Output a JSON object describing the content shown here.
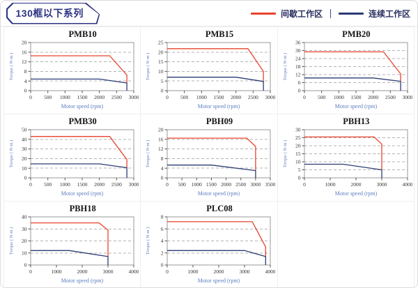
{
  "header": {
    "title": "130框以下系列",
    "legend": [
      {
        "label": "间歇工作区",
        "color": "#e8432c"
      },
      {
        "label": "连续工作区",
        "color": "#2a3b72"
      }
    ]
  },
  "colors": {
    "intermittent_zone": "#e8432c",
    "continuous_zone": "#2a3b72",
    "axis_label_blue": "#5b7cc0",
    "header_navy": "#2b3282"
  },
  "chart_data": [
    {
      "type": "line",
      "title": "PMB10",
      "xlabel": "Motor speed (rpm)",
      "ylabel": "Torque ( N·m )",
      "xlim": [
        0,
        3000
      ],
      "ylim": [
        0,
        20
      ],
      "xticks": [
        0,
        500,
        1000,
        1500,
        2000,
        2500,
        3000
      ],
      "yticks": [
        0,
        4,
        8,
        12,
        16,
        20
      ],
      "grid": "horizontal-dashed",
      "legend_position": "none",
      "series": [
        {
          "name": "间歇工作区",
          "color": "#e8432c",
          "points": [
            [
              0,
              14.5
            ],
            [
              2300,
              14.5
            ],
            [
              2800,
              6.5
            ],
            [
              2800,
              3.2
            ]
          ]
        },
        {
          "name": "连续工作区",
          "color": "#2a3b72",
          "points": [
            [
              0,
              4.8
            ],
            [
              2000,
              4.8
            ],
            [
              2800,
              3.2
            ],
            [
              2800,
              0
            ]
          ]
        }
      ]
    },
    {
      "type": "line",
      "title": "PMB15",
      "xlabel": "Motor speed (rpm)",
      "ylabel": "Torque ( N·m )",
      "xlim": [
        0,
        3000
      ],
      "ylim": [
        0,
        25
      ],
      "xticks": [
        0,
        500,
        1000,
        1500,
        2000,
        2500,
        3000
      ],
      "yticks": [
        0,
        5,
        10,
        15,
        20,
        25
      ],
      "grid": "horizontal-dashed",
      "legend_position": "none",
      "series": [
        {
          "name": "间歇工作区",
          "color": "#e8432c",
          "points": [
            [
              0,
              21.8
            ],
            [
              2350,
              21.8
            ],
            [
              2800,
              10
            ],
            [
              2800,
              4.8
            ]
          ]
        },
        {
          "name": "连续工作区",
          "color": "#2a3b72",
          "points": [
            [
              0,
              7
            ],
            [
              2000,
              7
            ],
            [
              2800,
              4.8
            ],
            [
              2800,
              0
            ]
          ]
        }
      ]
    },
    {
      "type": "line",
      "title": "PMB20",
      "xlabel": "Motor speed (rpm)",
      "ylabel": "Torque ( N·m )",
      "xlim": [
        0,
        3000
      ],
      "ylim": [
        0,
        36
      ],
      "xticks": [
        0,
        500,
        1000,
        1500,
        2000,
        2500,
        3000
      ],
      "yticks": [
        0,
        6,
        12,
        18,
        24,
        30,
        36
      ],
      "grid": "horizontal-dashed",
      "legend_position": "none",
      "series": [
        {
          "name": "间歇工作区",
          "color": "#e8432c",
          "points": [
            [
              0,
              29
            ],
            [
              2300,
              29
            ],
            [
              2800,
              12.5
            ],
            [
              2800,
              7
            ]
          ]
        },
        {
          "name": "连续工作区",
          "color": "#2a3b72",
          "points": [
            [
              0,
              9.5
            ],
            [
              2000,
              9.5
            ],
            [
              2800,
              7
            ],
            [
              2800,
              0
            ]
          ]
        }
      ]
    },
    {
      "type": "line",
      "title": "PMB30",
      "xlabel": "Motor speed (rpm)",
      "ylabel": "Torque ( N·m )",
      "xlim": [
        0,
        3000
      ],
      "ylim": [
        0,
        50
      ],
      "xticks": [
        0,
        500,
        1000,
        1500,
        2000,
        2500,
        3000
      ],
      "yticks": [
        0,
        10,
        20,
        30,
        40,
        50
      ],
      "grid": "horizontal-dashed",
      "legend_position": "none",
      "series": [
        {
          "name": "间歇工作区",
          "color": "#e8432c",
          "points": [
            [
              0,
              43
            ],
            [
              2300,
              43
            ],
            [
              2800,
              19
            ],
            [
              2800,
              10.5
            ]
          ]
        },
        {
          "name": "连续工作区",
          "color": "#2a3b72",
          "points": [
            [
              0,
              14.5
            ],
            [
              2000,
              14.5
            ],
            [
              2800,
              10.5
            ],
            [
              2800,
              0
            ]
          ]
        }
      ]
    },
    {
      "type": "line",
      "title": "PBH09",
      "xlabel": "Motor speed (rpm)",
      "ylabel": "Torque ( N·m )",
      "xlim": [
        0,
        3500
      ],
      "ylim": [
        0,
        20
      ],
      "xticks": [
        0,
        500,
        1000,
        1500,
        2000,
        2500,
        3000,
        3500
      ],
      "yticks": [
        0,
        4,
        8,
        12,
        16,
        20
      ],
      "grid": "horizontal-dashed",
      "legend_position": "none",
      "series": [
        {
          "name": "间歇工作区",
          "color": "#e8432c",
          "points": [
            [
              0,
              16.5
            ],
            [
              2700,
              16.5
            ],
            [
              3000,
              13
            ],
            [
              3000,
              3
            ]
          ]
        },
        {
          "name": "连续工作区",
          "color": "#2a3b72",
          "points": [
            [
              0,
              5.3
            ],
            [
              1500,
              5.3
            ],
            [
              3000,
              3
            ],
            [
              3000,
              0
            ]
          ]
        }
      ]
    },
    {
      "type": "line",
      "title": "PBH13",
      "xlabel": "Motor speed (rpm)",
      "ylabel": "Torque ( N·m )",
      "xlim": [
        0,
        4000
      ],
      "ylim": [
        0,
        30
      ],
      "xticks": [
        0,
        1000,
        2000,
        3000,
        4000
      ],
      "yticks": [
        0,
        5,
        10,
        15,
        20,
        25,
        30
      ],
      "grid": "horizontal-dashed",
      "legend_position": "none",
      "series": [
        {
          "name": "间歇工作区",
          "color": "#e8432c",
          "points": [
            [
              0,
              25.5
            ],
            [
              2700,
              25.5
            ],
            [
              3000,
              21
            ],
            [
              3000,
              5
            ]
          ]
        },
        {
          "name": "连续工作区",
          "color": "#2a3b72",
          "points": [
            [
              0,
              8.5
            ],
            [
              1500,
              8.5
            ],
            [
              3000,
              5
            ],
            [
              3000,
              0
            ]
          ]
        }
      ]
    },
    {
      "type": "line",
      "title": "PBH18",
      "xlabel": "Motor speed (rpm)",
      "ylabel": "Torque ( N·m )",
      "xlim": [
        0,
        4000
      ],
      "ylim": [
        0,
        40
      ],
      "xticks": [
        0,
        1000,
        2000,
        3000,
        4000
      ],
      "yticks": [
        0,
        10,
        20,
        30,
        40
      ],
      "grid": "horizontal-dashed",
      "legend_position": "none",
      "series": [
        {
          "name": "间歇工作区",
          "color": "#e8432c",
          "points": [
            [
              0,
              35
            ],
            [
              2650,
              35
            ],
            [
              3000,
              29
            ],
            [
              3000,
              7
            ]
          ]
        },
        {
          "name": "连续工作区",
          "color": "#2a3b72",
          "points": [
            [
              0,
              12
            ],
            [
              1500,
              12
            ],
            [
              3000,
              7
            ],
            [
              3000,
              0
            ]
          ]
        }
      ]
    },
    {
      "type": "line",
      "title": "PLC08",
      "xlabel": "Motor speed (rpm)",
      "ylabel": "Torque ( N·m )",
      "xlim": [
        0,
        4000
      ],
      "ylim": [
        0,
        8
      ],
      "xticks": [
        0,
        1000,
        2000,
        3000,
        4000
      ],
      "yticks": [
        0,
        2,
        4,
        6,
        8
      ],
      "grid": "horizontal-dashed",
      "legend_position": "none",
      "series": [
        {
          "name": "间歇工作区",
          "color": "#e8432c",
          "points": [
            [
              0,
              7.2
            ],
            [
              3300,
              7.2
            ],
            [
              3820,
              3
            ],
            [
              3820,
              1.4
            ]
          ]
        },
        {
          "name": "连续工作区",
          "color": "#2a3b72",
          "points": [
            [
              0,
              2.4
            ],
            [
              3000,
              2.4
            ],
            [
              3820,
              1.4
            ],
            [
              3820,
              0
            ]
          ]
        }
      ]
    }
  ]
}
